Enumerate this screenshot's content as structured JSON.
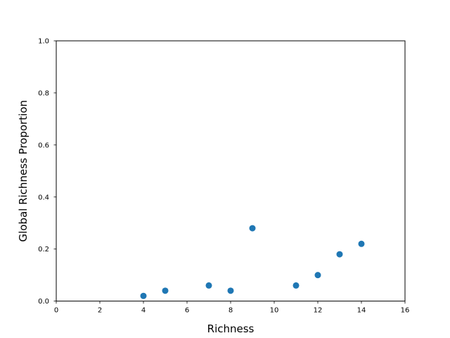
{
  "chart_data": {
    "type": "scatter",
    "title": "",
    "xlabel": "Richness",
    "ylabel": "Global Richness Proportion",
    "xlim": [
      0,
      16
    ],
    "ylim": [
      0.0,
      1.0
    ],
    "x_ticks": [
      0,
      2,
      4,
      6,
      8,
      10,
      12,
      14,
      16
    ],
    "y_ticks": [
      0.0,
      0.2,
      0.4,
      0.6,
      0.8,
      1.0
    ],
    "x_tick_labels": [
      "0",
      "2",
      "4",
      "6",
      "8",
      "10",
      "12",
      "14",
      "16"
    ],
    "y_tick_labels": [
      "0.0",
      "0.2",
      "0.4",
      "0.6",
      "0.8",
      "1.0"
    ],
    "grid": false,
    "legend": "none",
    "color": "#1f77b4",
    "points": [
      {
        "x": 4,
        "y": 0.02
      },
      {
        "x": 5,
        "y": 0.04
      },
      {
        "x": 7,
        "y": 0.06
      },
      {
        "x": 8,
        "y": 0.04
      },
      {
        "x": 9,
        "y": 0.28
      },
      {
        "x": 11,
        "y": 0.06
      },
      {
        "x": 12,
        "y": 0.1
      },
      {
        "x": 13,
        "y": 0.18
      },
      {
        "x": 14,
        "y": 0.22
      }
    ]
  }
}
